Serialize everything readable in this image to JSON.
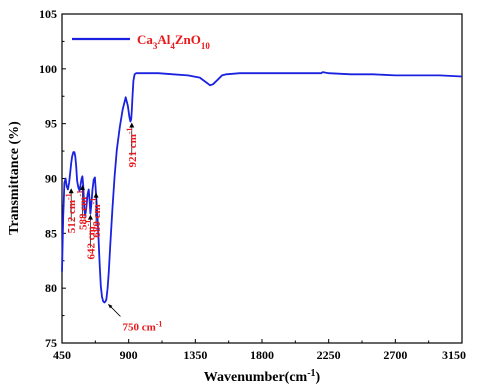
{
  "chart_data": {
    "type": "line",
    "xlabel_text": "Wavenumber(cm",
    "xlabel_sup": "-1",
    "xlabel_tail": ")",
    "ylabel": "Transmittance (%)",
    "xlim": [
      450,
      3150
    ],
    "ylim": [
      75,
      105
    ],
    "xticks": [
      450,
      900,
      1350,
      1800,
      2250,
      2700,
      3150
    ],
    "yticks": [
      75,
      80,
      85,
      90,
      95,
      100,
      105
    ],
    "grid": false,
    "legend_position": "top-left",
    "legend_parts": [
      {
        "t": "Ca",
        "sub": "3"
      },
      {
        "t": "Al",
        "sub": "4"
      },
      {
        "t": "ZnO",
        "sub": "10"
      }
    ],
    "series": [
      {
        "color": "#1a22e0",
        "x": [
          450,
          458,
          466,
          474,
          482,
          490,
          498,
          506,
          512,
          518,
          526,
          534,
          540,
          546,
          552,
          560,
          568,
          576,
          582,
          588,
          594,
          600,
          606,
          614,
          622,
          630,
          636,
          642,
          648,
          656,
          664,
          672,
          680,
          688,
          696,
          704,
          712,
          720,
          728,
          736,
          744,
          750,
          758,
          766,
          776,
          790,
          805,
          820,
          840,
          860,
          880,
          895,
          905,
          912,
          917,
          921,
          926,
          932,
          940,
          950,
          960,
          980,
          1000,
          1100,
          1200,
          1300,
          1380,
          1420,
          1450,
          1470,
          1500,
          1530,
          1560,
          1650,
          1800,
          1950,
          2050,
          2130,
          2170,
          2200,
          2210,
          2250,
          2400,
          2550,
          2700,
          2850,
          3000,
          3150
        ],
        "y": [
          81.5,
          86.5,
          89.6,
          90.0,
          89.3,
          89.0,
          89.6,
          90.6,
          91.4,
          92.0,
          92.4,
          92.4,
          92.0,
          91.1,
          89.8,
          89.2,
          88.9,
          89.5,
          90.0,
          90.2,
          89.3,
          87.4,
          86.6,
          87.3,
          88.5,
          89.0,
          88.0,
          86.8,
          87.6,
          89.0,
          89.9,
          90.1,
          88.5,
          86.8,
          84.8,
          82.3,
          80.2,
          79.2,
          78.8,
          78.7,
          78.8,
          79.0,
          80.0,
          81.5,
          84.0,
          87.2,
          90.2,
          92.6,
          94.7,
          96.3,
          97.4,
          96.6,
          95.6,
          95.2,
          95.4,
          96.2,
          97.5,
          98.9,
          99.5,
          99.6,
          99.6,
          99.6,
          99.6,
          99.6,
          99.5,
          99.4,
          99.2,
          98.8,
          98.5,
          98.6,
          99.0,
          99.4,
          99.5,
          99.6,
          99.6,
          99.6,
          99.6,
          99.6,
          99.6,
          99.6,
          99.7,
          99.6,
          99.5,
          99.5,
          99.4,
          99.4,
          99.4,
          99.3
        ]
      }
    ],
    "annotations": [
      {
        "label": "512 cm",
        "sup": "-1",
        "x": 512,
        "y": 89.2,
        "rotate": -90
      },
      {
        "label": "588 cm",
        "sup": "-1",
        "x": 588,
        "y": 89.5,
        "rotate": -90
      },
      {
        "label": "642 cm",
        "sup": "-1",
        "x": 642,
        "y": 86.8,
        "rotate": -90
      },
      {
        "label": "680 cm",
        "sup": "-1",
        "x": 680,
        "y": 88.8,
        "rotate": -90
      },
      {
        "label": "750 cm",
        "sup": "-1",
        "x": 750,
        "y": 78.7,
        "rotate": 0
      },
      {
        "label": "921 cm",
        "sup": "-1",
        "x": 921,
        "y": 95.2,
        "rotate": -90
      }
    ]
  }
}
